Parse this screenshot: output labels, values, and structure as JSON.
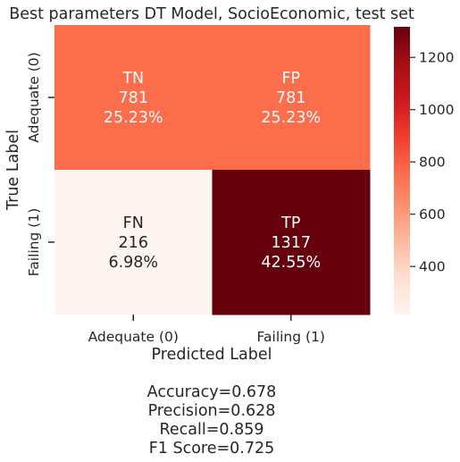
{
  "chart_data": {
    "type": "heatmap",
    "title": "Best parameters DT Model, SocioEconomic, test set",
    "xlabel": "Predicted Label",
    "ylabel": "True Label",
    "x_categories": [
      "Adequate (0)",
      "Failing (1)"
    ],
    "y_categories": [
      "Adequate (0)",
      "Failing (1)"
    ],
    "cells": [
      {
        "row": 0,
        "col": 0,
        "label": "TN",
        "value": 781,
        "percent": "25.23%",
        "color": "#fc6d4b",
        "text_color": "#ffffff"
      },
      {
        "row": 0,
        "col": 1,
        "label": "FP",
        "value": 781,
        "percent": "25.23%",
        "color": "#fc6d4b",
        "text_color": "#ffffff"
      },
      {
        "row": 1,
        "col": 0,
        "label": "FN",
        "value": 216,
        "percent": "6.98%",
        "color": "#fff5f0",
        "text_color": "#262626"
      },
      {
        "row": 1,
        "col": 1,
        "label": "TP",
        "value": 1317,
        "percent": "42.55%",
        "color": "#67000d",
        "text_color": "#ffffff"
      }
    ],
    "colorbar": {
      "colormap": "Reds",
      "range": [
        216,
        1317
      ],
      "ticks": [
        400,
        600,
        800,
        1000,
        1200
      ],
      "stops": [
        "#fff5f0",
        "#fee0d2",
        "#fcbba1",
        "#fc9272",
        "#fb6a4a",
        "#ef3b2c",
        "#cb181d",
        "#a50f15",
        "#67000d"
      ]
    },
    "metrics": [
      "Accuracy=0.678",
      "Precision=0.628",
      "Recall=0.859",
      "F1 Score=0.725"
    ]
  }
}
